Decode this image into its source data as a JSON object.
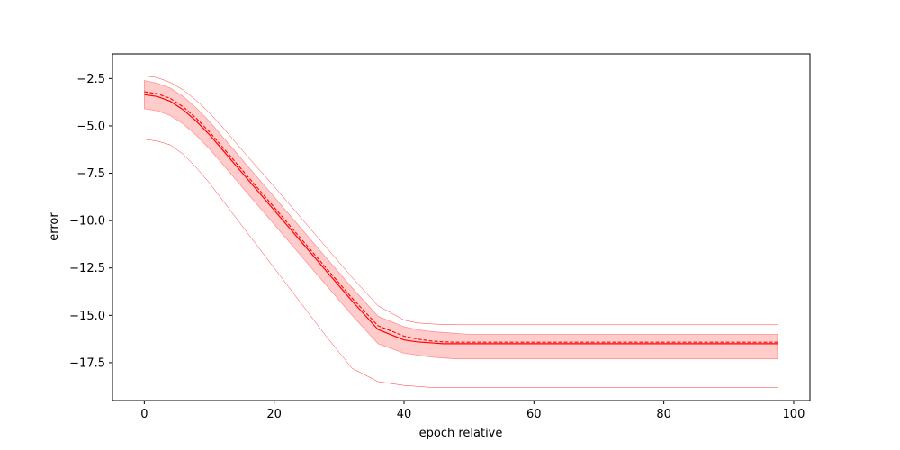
{
  "chart_data": {
    "type": "line",
    "xlabel": "epoch relative",
    "ylabel": "error",
    "xlim": [
      -4.9,
      102.5
    ],
    "ylim": [
      -19.5,
      -1.2
    ],
    "x_ticks": [
      0,
      20,
      40,
      60,
      80,
      100
    ],
    "y_ticks": [
      -2.5,
      -5.0,
      -7.5,
      -10.0,
      -12.5,
      -15.0,
      -17.5
    ],
    "x_tick_labels": [
      "0",
      "20",
      "40",
      "60",
      "80",
      "100"
    ],
    "y_tick_labels": [
      "−2.5",
      "−5.0",
      "−7.5",
      "−10.0",
      "−12.5",
      "−15.0",
      "−17.5"
    ],
    "grid": false,
    "legend": false,
    "color": "#ff0000",
    "band_color": "#ff9999",
    "x": [
      0,
      2,
      4,
      6,
      8,
      10,
      12,
      14,
      16,
      20,
      24,
      28,
      32,
      36,
      40,
      42,
      44,
      46,
      48,
      50,
      60,
      70,
      80,
      90,
      97.5
    ],
    "series": [
      {
        "style": "solid",
        "values": [
          -3.35,
          -3.45,
          -3.7,
          -4.15,
          -4.75,
          -5.45,
          -6.25,
          -7.05,
          -7.85,
          -9.45,
          -11.05,
          -12.65,
          -14.25,
          -15.75,
          -16.3,
          -16.4,
          -16.45,
          -16.5,
          -16.5,
          -16.5,
          -16.5,
          -16.5,
          -16.5,
          -16.5,
          -16.5
        ]
      },
      {
        "style": "dashed",
        "values": [
          -3.2,
          -3.3,
          -3.55,
          -4.0,
          -4.6,
          -5.3,
          -6.1,
          -6.9,
          -7.7,
          -9.3,
          -10.9,
          -12.5,
          -14.1,
          -15.55,
          -16.1,
          -16.25,
          -16.35,
          -16.4,
          -16.42,
          -16.42,
          -16.42,
          -16.42,
          -16.42,
          -16.42,
          -16.42
        ]
      },
      {
        "style": "band_upper",
        "values": [
          -2.6,
          -2.75,
          -3.0,
          -3.45,
          -4.05,
          -4.75,
          -5.55,
          -6.35,
          -7.15,
          -8.75,
          -10.35,
          -11.95,
          -13.55,
          -15.05,
          -15.6,
          -15.75,
          -15.85,
          -15.9,
          -15.95,
          -16.0,
          -16.0,
          -16.0,
          -16.0,
          -16.0,
          -16.0
        ]
      },
      {
        "style": "band_lower",
        "values": [
          -4.1,
          -4.2,
          -4.45,
          -4.9,
          -5.5,
          -6.2,
          -7.0,
          -7.8,
          -8.6,
          -10.2,
          -11.8,
          -13.4,
          -15.0,
          -16.5,
          -17.0,
          -17.1,
          -17.2,
          -17.25,
          -17.3,
          -17.3,
          -17.3,
          -17.3,
          -17.3,
          -17.3,
          -17.3
        ]
      },
      {
        "style": "max",
        "values": [
          -2.35,
          -2.45,
          -2.7,
          -3.1,
          -3.65,
          -4.3,
          -5.05,
          -5.85,
          -6.65,
          -8.2,
          -9.8,
          -11.4,
          -13.0,
          -14.5,
          -15.25,
          -15.4,
          -15.45,
          -15.48,
          -15.5,
          -15.5,
          -15.5,
          -15.5,
          -15.5,
          -15.5,
          -15.5
        ]
      },
      {
        "style": "min",
        "values": [
          -5.7,
          -5.8,
          -6.0,
          -6.5,
          -7.2,
          -8.0,
          -8.9,
          -9.8,
          -10.7,
          -12.5,
          -14.3,
          -16.1,
          -17.8,
          -18.5,
          -18.7,
          -18.75,
          -18.8,
          -18.8,
          -18.8,
          -18.8,
          -18.8,
          -18.8,
          -18.8,
          -18.8,
          -18.8
        ]
      }
    ]
  }
}
